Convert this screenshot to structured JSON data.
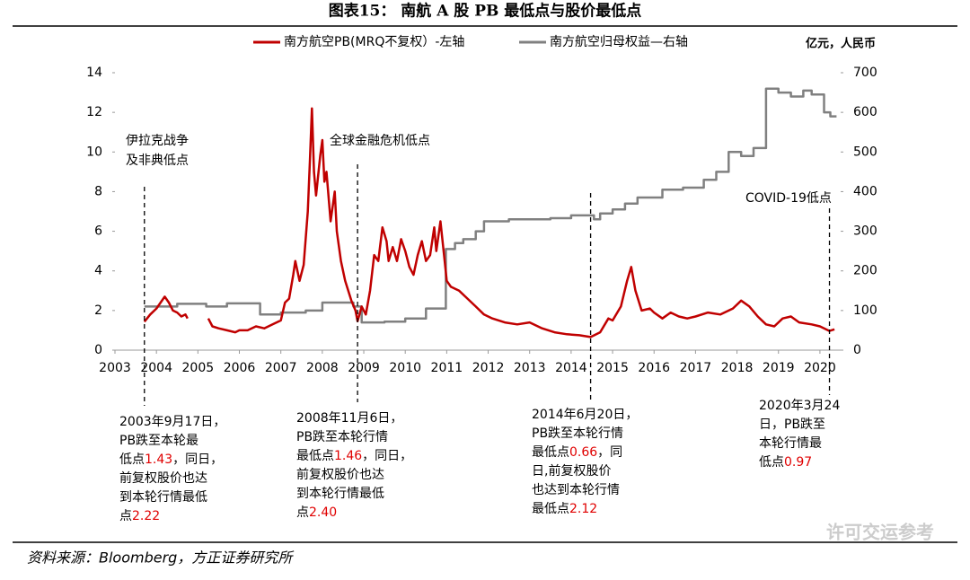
{
  "chart_data": {
    "type": "line",
    "title": "图表15：     南航 A 股 PB 最低点与股价最低点",
    "source": "资料来源：Bloomberg，方正证券研究所",
    "watermark": "许可交运参考",
    "y2_unit": "亿元，人民币",
    "xlim": [
      2003,
      2020.5
    ],
    "xticks": [
      2003,
      2004,
      2005,
      2006,
      2007,
      2008,
      2009,
      2010,
      2011,
      2012,
      2013,
      2014,
      2015,
      2016,
      2017,
      2018,
      2019,
      2020
    ],
    "ylim": [
      0,
      14
    ],
    "yticks": [
      0,
      2,
      4,
      6,
      8,
      10,
      12,
      14
    ],
    "y2lim": [
      0,
      700
    ],
    "y2ticks": [
      0,
      100,
      200,
      300,
      400,
      500,
      600,
      700
    ],
    "series": [
      {
        "name": "南方航空PB(MRQ不复权）-左轴",
        "color": "#c00000",
        "x": [
          2003.71,
          2003.85,
          2004.0,
          2004.1,
          2004.2,
          2004.3,
          2004.4,
          2004.5,
          2004.6,
          2004.7,
          2004.75,
          2005.0,
          2005.25,
          2005.35,
          2005.5,
          2005.7,
          2005.9,
          2006.0,
          2006.2,
          2006.4,
          2006.6,
          2006.8,
          2007.0,
          2007.1,
          2007.2,
          2007.3,
          2007.35,
          2007.45,
          2007.55,
          2007.65,
          2007.7,
          2007.75,
          2007.8,
          2007.85,
          2007.95,
          2008.0,
          2008.05,
          2008.1,
          2008.2,
          2008.3,
          2008.35,
          2008.45,
          2008.55,
          2008.7,
          2008.8,
          2008.85,
          2008.95,
          2009.05,
          2009.15,
          2009.25,
          2009.35,
          2009.45,
          2009.55,
          2009.6,
          2009.7,
          2009.8,
          2009.9,
          2010.0,
          2010.1,
          2010.2,
          2010.3,
          2010.4,
          2010.5,
          2010.6,
          2010.7,
          2010.75,
          2010.85,
          2010.95,
          2011.0,
          2011.1,
          2011.3,
          2011.5,
          2011.7,
          2011.9,
          2012.1,
          2012.4,
          2012.7,
          2013.0,
          2013.3,
          2013.6,
          2013.9,
          2014.2,
          2014.47,
          2014.7,
          2014.9,
          2015.0,
          2015.2,
          2015.35,
          2015.45,
          2015.55,
          2015.7,
          2015.9,
          2016.0,
          2016.2,
          2016.4,
          2016.6,
          2016.8,
          2017.0,
          2017.3,
          2017.6,
          2017.9,
          2018.1,
          2018.3,
          2018.5,
          2018.7,
          2018.9,
          2019.1,
          2019.3,
          2019.5,
          2019.8,
          2020.0,
          2020.23,
          2020.35
        ],
        "values": [
          1.43,
          1.8,
          2.1,
          2.4,
          2.7,
          2.4,
          2.0,
          1.9,
          1.7,
          1.8,
          1.6,
          null,
          1.6,
          1.2,
          1.1,
          1.0,
          0.9,
          1.0,
          1.0,
          1.2,
          1.1,
          1.3,
          1.5,
          2.4,
          2.6,
          3.8,
          4.5,
          3.5,
          4.3,
          7.0,
          9.5,
          12.2,
          9.0,
          7.8,
          9.8,
          10.6,
          8.5,
          9.0,
          6.5,
          8.0,
          6.0,
          4.5,
          3.5,
          2.5,
          2.0,
          1.46,
          2.2,
          1.8,
          3.0,
          4.8,
          4.5,
          6.2,
          5.5,
          4.5,
          5.2,
          4.5,
          5.6,
          5.0,
          4.2,
          3.8,
          4.8,
          5.5,
          4.5,
          4.8,
          6.2,
          5.0,
          6.5,
          4.5,
          3.5,
          3.2,
          3.0,
          2.6,
          2.2,
          1.8,
          1.6,
          1.4,
          1.3,
          1.4,
          1.1,
          0.9,
          0.8,
          0.75,
          0.66,
          0.9,
          1.6,
          1.5,
          2.2,
          3.5,
          4.2,
          3.0,
          2.0,
          2.1,
          1.9,
          1.6,
          1.9,
          1.7,
          1.6,
          1.7,
          1.9,
          1.8,
          2.1,
          2.5,
          2.2,
          1.7,
          1.3,
          1.2,
          1.6,
          1.7,
          1.4,
          1.3,
          1.2,
          0.97,
          1.05
        ]
      },
      {
        "name": "南方航空归母权益—右轴",
        "color": "#808080",
        "axis": "y2",
        "x": [
          2003.71,
          2004.5,
          2004.5,
          2005.2,
          2005.2,
          2005.7,
          2005.7,
          2006.5,
          2006.5,
          2007.0,
          2007.0,
          2007.6,
          2007.6,
          2008.0,
          2008.0,
          2008.75,
          2008.75,
          2008.95,
          2008.95,
          2009.5,
          2009.5,
          2010.0,
          2010.0,
          2010.5,
          2010.5,
          2010.98,
          2010.98,
          2011.2,
          2011.2,
          2011.4,
          2011.4,
          2011.7,
          2011.7,
          2011.9,
          2011.9,
          2012.5,
          2012.5,
          2013.5,
          2013.5,
          2014.0,
          2014.0,
          2014.55,
          2014.55,
          2014.7,
          2014.7,
          2015.0,
          2015.0,
          2015.3,
          2015.3,
          2015.6,
          2015.6,
          2016.2,
          2016.2,
          2016.7,
          2016.7,
          2017.2,
          2017.2,
          2017.5,
          2017.5,
          2017.8,
          2017.8,
          2018.1,
          2018.1,
          2018.4,
          2018.4,
          2018.7,
          2018.7,
          2019.0,
          2019.0,
          2019.3,
          2019.3,
          2019.6,
          2019.6,
          2019.8,
          2019.8,
          2020.1,
          2020.1,
          2020.25,
          2020.25,
          2020.4
        ],
        "values": [
          110,
          110,
          117,
          117,
          110,
          110,
          118,
          118,
          90,
          90,
          95,
          95,
          100,
          100,
          120,
          120,
          110,
          110,
          70,
          70,
          72,
          72,
          80,
          80,
          105,
          105,
          255,
          255,
          270,
          270,
          280,
          280,
          300,
          300,
          325,
          325,
          330,
          330,
          333,
          333,
          340,
          340,
          330,
          330,
          345,
          345,
          355,
          355,
          370,
          370,
          385,
          385,
          405,
          405,
          410,
          410,
          430,
          430,
          450,
          450,
          500,
          500,
          490,
          490,
          510,
          510,
          660,
          660,
          650,
          650,
          640,
          640,
          655,
          655,
          645,
          645,
          600,
          600,
          590,
          590
        ]
      }
    ],
    "annotations": [
      {
        "x": 2003.71,
        "label": [
          "伊拉克战争",
          "及非典低点"
        ],
        "lines": [
          [
            {
              "text": "2003年9月17日，"
            }
          ],
          [
            {
              "text": "PB跌至本轮最"
            }
          ],
          [
            {
              "text": "低点"
            },
            {
              "text": "1.43",
              "color": "#e00000"
            },
            {
              "text": "，同日，"
            }
          ],
          [
            {
              "text": "前复权股价也达"
            }
          ],
          [
            {
              "text": "到本轮行情最低"
            }
          ],
          [
            {
              "text": "点"
            },
            {
              "text": "2.22",
              "color": "#e00000"
            }
          ]
        ]
      },
      {
        "x": 2008.85,
        "label": [
          "全球金融危机低点"
        ],
        "lines": [
          [
            {
              "text": "2008年11月6日，"
            }
          ],
          [
            {
              "text": "PB跌至本轮行情"
            }
          ],
          [
            {
              "text": "最低点"
            },
            {
              "text": "1.46",
              "color": "#e00000"
            },
            {
              "text": "，同日，"
            }
          ],
          [
            {
              "text": "前复权股价也达"
            }
          ],
          [
            {
              "text": "到本轮行情最低"
            }
          ],
          [
            {
              "text": "点"
            },
            {
              "text": "2.40",
              "color": "#e00000"
            }
          ]
        ]
      },
      {
        "x": 2014.47,
        "label": [],
        "lines": [
          [
            {
              "text": "2014年6月20日，"
            }
          ],
          [
            {
              "text": "PB跌至本轮行情"
            }
          ],
          [
            {
              "text": "最低点"
            },
            {
              "text": "0.66",
              "color": "#e00000"
            },
            {
              "text": "，同"
            }
          ],
          [
            {
              "text": "日,前复权股价"
            }
          ],
          [
            {
              "text": "也达到本轮行情"
            }
          ],
          [
            {
              "text": "最低点"
            },
            {
              "text": "2.12",
              "color": "#e00000"
            }
          ]
        ]
      },
      {
        "x": 2020.23,
        "label": [
          "COVID-19低点"
        ],
        "lines": [
          [
            {
              "text": "2020年3月24"
            }
          ],
          [
            {
              "text": "日，PB跌至"
            }
          ],
          [
            {
              "text": "本轮行情最"
            }
          ],
          [
            {
              "text": "低点"
            },
            {
              "text": "0.97",
              "color": "#e00000"
            }
          ]
        ]
      }
    ]
  }
}
